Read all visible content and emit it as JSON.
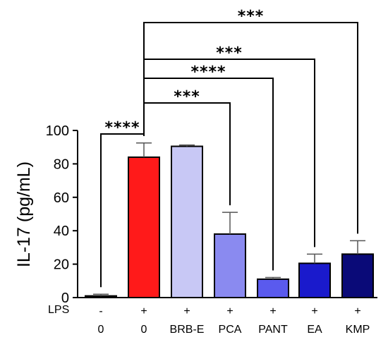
{
  "chart_data": {
    "type": "bar",
    "ylabel": "IL-17 (pg/mL)",
    "ylim": [
      0,
      100
    ],
    "yticks": [
      0,
      20,
      40,
      60,
      80,
      100
    ],
    "row_labels": {
      "lps": "LPS"
    },
    "categories": [
      "0",
      "0",
      "BRB-E",
      "PCA",
      "PANT",
      "EA",
      "KMP"
    ],
    "lps": [
      "-",
      "+",
      "+",
      "+",
      "+",
      "+",
      "+"
    ],
    "values": [
      1,
      84,
      90.5,
      38,
      11,
      20.5,
      26
    ],
    "errors": [
      1,
      8.5,
      0.8,
      13,
      1,
      5.5,
      8
    ],
    "colors": [
      "#1a1a1a",
      "#ff1a1a",
      "#c8c8f5",
      "#8a8af0",
      "#5a5aee",
      "#1a1acc",
      "#0a0a78"
    ],
    "significance": [
      {
        "from": 0,
        "to": 1,
        "label": "****"
      },
      {
        "from": 1,
        "to": 3,
        "label": "***"
      },
      {
        "from": 1,
        "to": 4,
        "label": "****"
      },
      {
        "from": 1,
        "to": 5,
        "label": "***"
      },
      {
        "from": 1,
        "to": 6,
        "label": "***"
      }
    ]
  }
}
